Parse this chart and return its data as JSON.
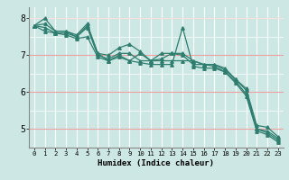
{
  "title": "",
  "xlabel": "Humidex (Indice chaleur)",
  "ylabel": "",
  "bg_color": "#cde8e4",
  "line_color": "#2e7d6e",
  "grid_color_v": "#ffffff",
  "grid_color_h": "#f0a0a0",
  "xmin": -0.5,
  "xmax": 23.5,
  "ymin": 4.5,
  "ymax": 8.3,
  "yticks": [
    5,
    6,
    7,
    8
  ],
  "series": [
    [
      7.8,
      8.0,
      7.65,
      7.65,
      7.55,
      7.85,
      7.05,
      6.85,
      7.0,
      6.85,
      7.05,
      6.85,
      7.05,
      7.05,
      7.05,
      6.85,
      6.75,
      6.75,
      6.65,
      6.35,
      6.05,
      5.0,
      4.95,
      4.75
    ],
    [
      7.8,
      7.85,
      7.65,
      7.65,
      7.5,
      7.8,
      7.05,
      7.0,
      7.2,
      7.3,
      7.1,
      6.85,
      6.9,
      7.05,
      7.0,
      6.75,
      6.75,
      6.75,
      6.6,
      6.35,
      6.1,
      5.1,
      5.05,
      4.8
    ],
    [
      7.8,
      7.75,
      7.6,
      7.6,
      7.5,
      7.75,
      7.0,
      6.9,
      7.05,
      7.05,
      6.85,
      6.85,
      6.85,
      6.85,
      6.85,
      6.85,
      6.75,
      6.7,
      6.55,
      6.3,
      5.95,
      5.0,
      4.9,
      4.7
    ],
    [
      7.8,
      7.65,
      7.6,
      7.55,
      7.45,
      7.5,
      6.95,
      6.85,
      6.95,
      6.85,
      6.8,
      6.75,
      6.75,
      6.75,
      7.75,
      6.7,
      6.65,
      6.65,
      6.55,
      6.25,
      5.9,
      4.95,
      4.85,
      4.65
    ]
  ],
  "xtick_labels": [
    "0",
    "1",
    "2",
    "3",
    "4",
    "5",
    "6",
    "7",
    "8",
    "9",
    "10",
    "11",
    "12",
    "13",
    "14",
    "15",
    "16",
    "17",
    "18",
    "19",
    "20",
    "21",
    "22",
    "23"
  ]
}
